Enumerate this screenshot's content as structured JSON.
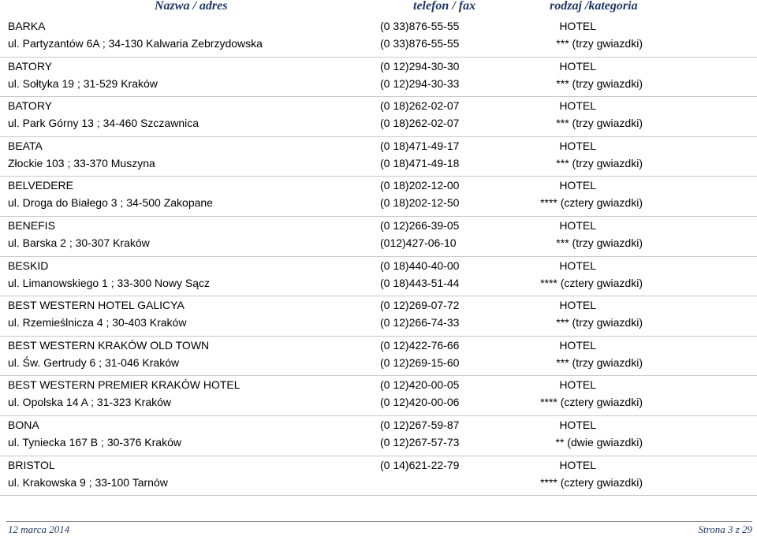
{
  "header": {
    "name_col": "Nazwa / adres",
    "phone_col": "telefon / fax",
    "category_col": "rodzaj /kategoria"
  },
  "entries": [
    {
      "name": "BARKA",
      "address": "ul. Partyzantów 6A ; 34-130 Kalwaria Zebrzydowska",
      "phone": "(0 33)876-55-55",
      "fax": "(0 33)876-55-55",
      "type": "HOTEL",
      "category": "*** (trzy gwiazdki)"
    },
    {
      "name": "BATORY",
      "address": "ul. Sołtyka 19 ; 31-529 Kraków",
      "phone": "(0 12)294-30-30",
      "fax": "(0 12)294-30-33",
      "type": "HOTEL",
      "category": "*** (trzy gwiazdki)"
    },
    {
      "name": "BATORY",
      "address": "ul. Park Górny 13 ; 34-460 Szczawnica",
      "phone": "(0 18)262-02-07",
      "fax": "(0 18)262-02-07",
      "type": "HOTEL",
      "category": "*** (trzy gwiazdki)"
    },
    {
      "name": "BEATA",
      "address": "Złockie 103 ; 33-370 Muszyna",
      "phone": "(0 18)471-49-17",
      "fax": "(0 18)471-49-18",
      "type": "HOTEL",
      "category": "*** (trzy gwiazdki)"
    },
    {
      "name": "BELVEDERE",
      "address": "ul. Droga do Białego 3 ; 34-500 Zakopane",
      "phone": "(0 18)202-12-00",
      "fax": "(0 18)202-12-50",
      "type": "HOTEL",
      "category": "**** (cztery gwiazdki)"
    },
    {
      "name": "BENEFIS",
      "address": "ul. Barska 2 ; 30-307 Kraków",
      "phone": "(0 12)266-39-05",
      "fax": "(012)427-06-10",
      "type": "HOTEL",
      "category": "*** (trzy gwiazdki)"
    },
    {
      "name": "BESKID",
      "address": "ul. Limanowskiego 1 ; 33-300 Nowy Sącz",
      "phone": "(0 18)440-40-00",
      "fax": "(0 18)443-51-44",
      "type": "HOTEL",
      "category": "**** (cztery gwiazdki)"
    },
    {
      "name": "BEST WESTERN HOTEL GALICYA",
      "address": "ul. Rzemieślnicza 4 ; 30-403 Kraków",
      "phone": "(0 12)269-07-72",
      "fax": "(0 12)266-74-33",
      "type": "HOTEL",
      "category": "*** (trzy gwiazdki)"
    },
    {
      "name": "BEST WESTERN KRAKÓW OLD TOWN",
      "address": "ul. Św. Gertrudy 6 ; 31-046 Kraków",
      "phone": "(0 12)422-76-66",
      "fax": "(0 12)269-15-60",
      "type": "HOTEL",
      "category": "*** (trzy gwiazdki)"
    },
    {
      "name": "BEST WESTERN PREMIER KRAKÓW HOTEL",
      "address": "ul. Opolska 14 A ; 31-323 Kraków",
      "phone": "(0 12)420-00-05",
      "fax": "(0 12)420-00-06",
      "type": "HOTEL",
      "category": "**** (cztery gwiazdki)"
    },
    {
      "name": "BONA",
      "address": "ul. Tyniecka 167 B ; 30-376 Kraków",
      "phone": "(0 12)267-59-87",
      "fax": "(0 12)267-57-73",
      "type": "HOTEL",
      "category": "** (dwie gwiazdki)"
    },
    {
      "name": "BRISTOL",
      "address": "ul. Krakowska 9 ; 33-100 Tarnów",
      "phone": "(0 14)621-22-79",
      "fax": "",
      "type": "HOTEL",
      "category": "**** (cztery gwiazdki)"
    }
  ],
  "footer": {
    "date": "12 marca 2014",
    "page": "Strona 3 z 29"
  },
  "colors": {
    "header_text": "#1f3864",
    "divider": "#c8c8c8"
  }
}
